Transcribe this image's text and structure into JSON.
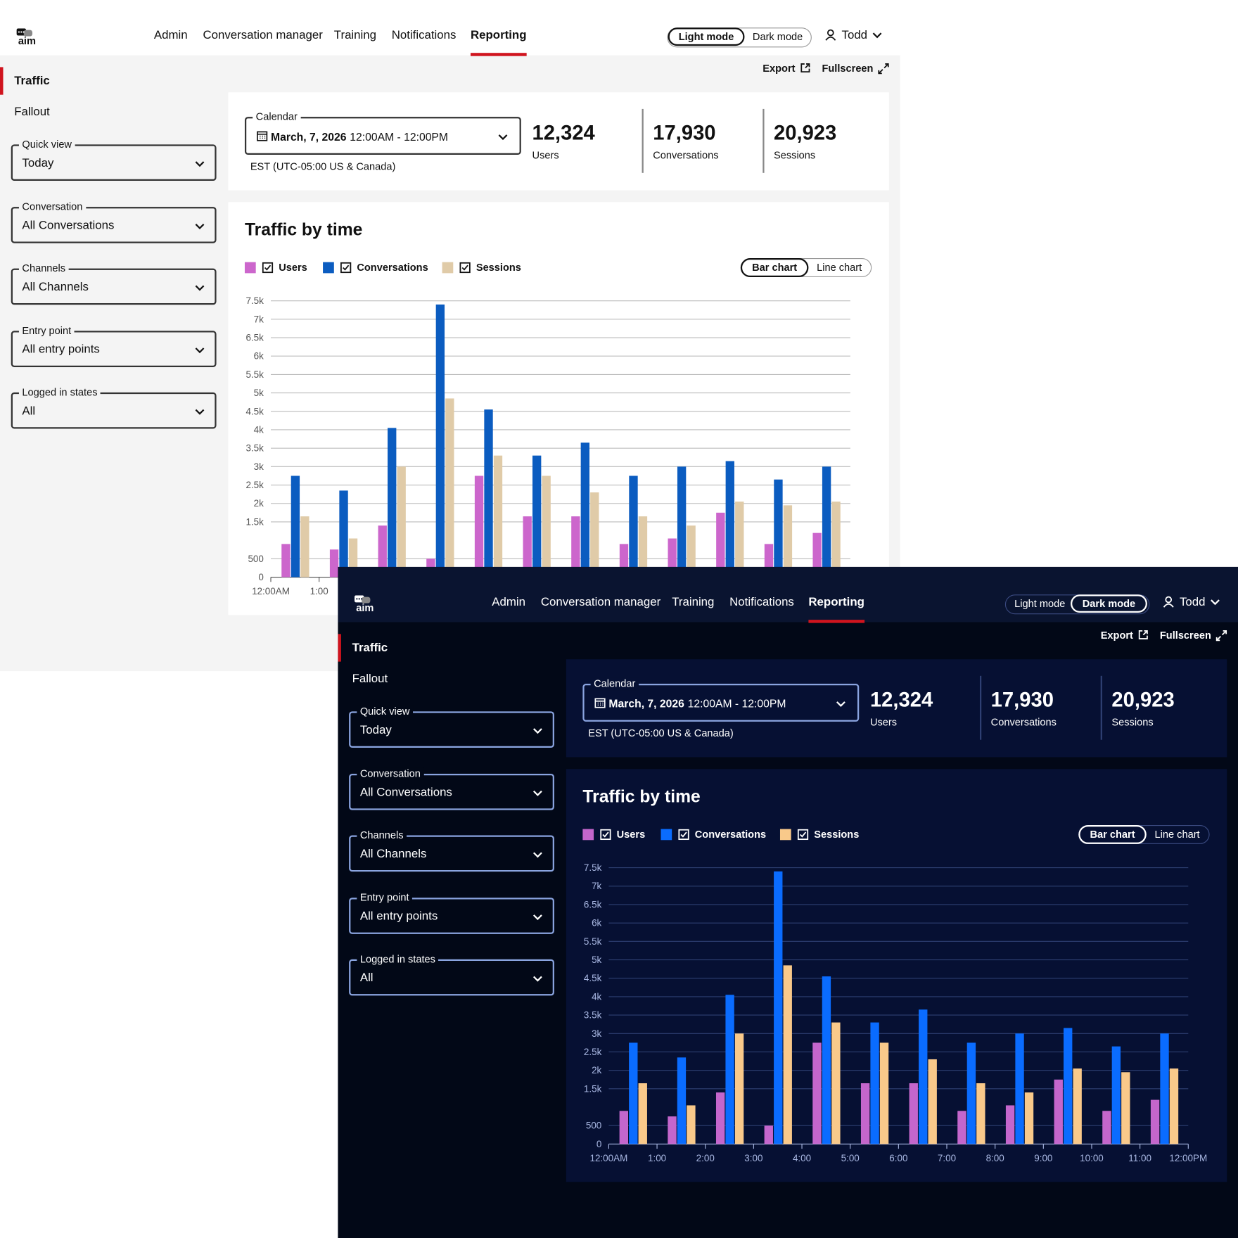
{
  "nav": {
    "logo": "aim",
    "items": [
      "Admin",
      "Conversation manager",
      "Training",
      "Notifications",
      "Reporting"
    ],
    "active": 4
  },
  "modes": [
    "Light mode",
    "Dark mode"
  ],
  "user": "Todd",
  "sidebar": {
    "tabs": [
      "Traffic",
      "Fallout"
    ],
    "active": 0,
    "filters": [
      {
        "label": "Quick view",
        "value": "Today"
      },
      {
        "label": "Conversation",
        "value": "All Conversations"
      },
      {
        "label": "Channels",
        "value": "All Channels"
      },
      {
        "label": "Entry point",
        "value": "All entry points"
      },
      {
        "label": "Logged in states",
        "value": "All"
      }
    ]
  },
  "actions": [
    "Export",
    "Fullscreen"
  ],
  "calendar": {
    "label": "Calendar",
    "date": "March, 7, 2026",
    "time": "12:00AM - 12:00PM",
    "timezone": "EST (UTC-05:00 US & Canada)"
  },
  "stats": [
    {
      "value": "12,324",
      "label": "Users"
    },
    {
      "value": "17,930",
      "label": "Conversations"
    },
    {
      "value": "20,923",
      "label": "Sessions"
    }
  ],
  "chart_data": {
    "type": "bar",
    "title": "Traffic by time",
    "chart_types": [
      "Bar chart",
      "Line chart"
    ],
    "active_chart_type": 0,
    "series": [
      {
        "name": "Users",
        "color": "#cc66cc",
        "dark_color": "#c466cc",
        "values": [
          900,
          750,
          1400,
          500,
          2750,
          1650,
          1650,
          900,
          1050,
          1750,
          900,
          1200
        ]
      },
      {
        "name": "Conversations",
        "color": "#0b5cc0",
        "dark_color": "#0a6cff",
        "values": [
          2750,
          2350,
          4050,
          7400,
          4550,
          3300,
          3650,
          2750,
          3000,
          3150,
          2650,
          3000
        ]
      },
      {
        "name": "Sessions",
        "color": "#e0cba8",
        "dark_color": "#f9c98a",
        "values": [
          1650,
          1050,
          3000,
          4850,
          3300,
          2750,
          2300,
          1650,
          1400,
          2050,
          1950,
          2050
        ]
      }
    ],
    "xlim": [
      0,
      12
    ],
    "xticks": [
      {
        "value": 0,
        "label": "12:00AM"
      },
      {
        "value": 1,
        "label": "1:00"
      },
      {
        "value": 2,
        "label": "2:00"
      },
      {
        "value": 3,
        "label": "3:00"
      },
      {
        "value": 4,
        "label": "4:00"
      },
      {
        "value": 5,
        "label": "5:00"
      },
      {
        "value": 6,
        "label": "6:00"
      },
      {
        "value": 7,
        "label": "7:00"
      },
      {
        "value": 8,
        "label": "8:00"
      },
      {
        "value": 9,
        "label": "9:00"
      },
      {
        "value": 10,
        "label": "10:00"
      },
      {
        "value": 11,
        "label": "11:00"
      },
      {
        "value": 12,
        "label": "12:00PM"
      }
    ],
    "ylim": [
      0,
      7500
    ],
    "yticks": [
      0,
      500,
      {
        "value": 1500,
        "label": "1.5k"
      },
      {
        "value": 2000,
        "label": "2k"
      },
      {
        "value": 2500,
        "label": "2.5k"
      },
      {
        "value": 3000,
        "label": "3k"
      },
      {
        "value": 3500,
        "label": "3.5k"
      },
      {
        "value": 4000,
        "label": "4k"
      },
      {
        "value": 4500,
        "label": "4.5k"
      },
      {
        "value": 5000,
        "label": "5k"
      },
      {
        "value": 5500,
        "label": "5.5k"
      },
      {
        "value": 6000,
        "label": "6k"
      },
      {
        "value": 6500,
        "label": "6.5k"
      },
      {
        "value": 7000,
        "label": "7k"
      },
      {
        "value": 7500,
        "label": "7.5k"
      }
    ],
    "grid": true
  }
}
